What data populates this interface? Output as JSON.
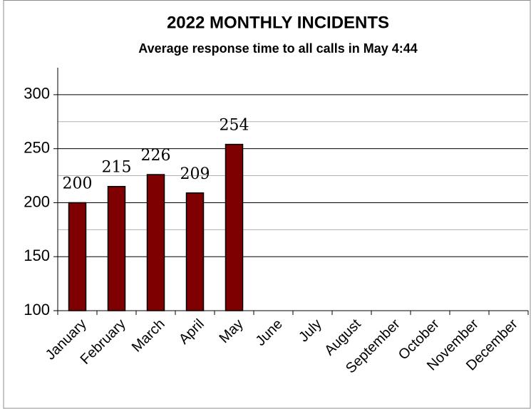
{
  "chart_data": {
    "type": "bar",
    "title": "2022 MONTHLY INCIDENTS",
    "subtitle": "Average response time to all calls in May 4:44",
    "categories": [
      "January",
      "February",
      "March",
      "April",
      "May",
      "June",
      "July",
      "August",
      "September",
      "October",
      "November",
      "December"
    ],
    "values": [
      200,
      215,
      226,
      209,
      254,
      null,
      null,
      null,
      null,
      null,
      null,
      null
    ],
    "color": "#7f0000",
    "ylim": [
      100,
      325
    ],
    "yticks": [
      100,
      150,
      200,
      250,
      300
    ],
    "minor_yticks": [
      175,
      225,
      275
    ],
    "grid": true
  }
}
